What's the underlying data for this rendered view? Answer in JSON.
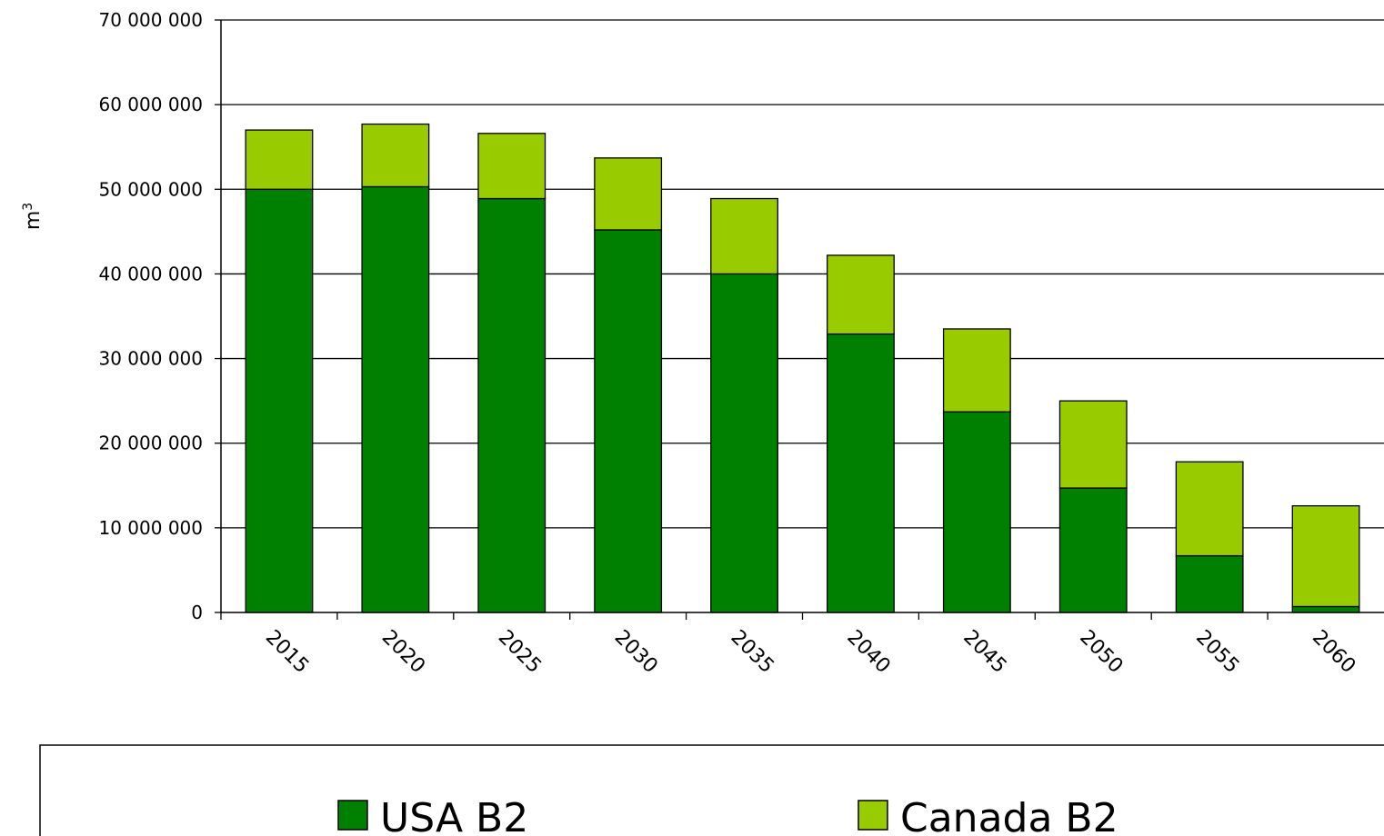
{
  "chart_data": {
    "type": "bar",
    "stacked": true,
    "categories": [
      "2015",
      "2020",
      "2025",
      "2030",
      "2035",
      "2040",
      "2045",
      "2050",
      "2055",
      "2060"
    ],
    "series": [
      {
        "name": "USA B2",
        "color": "#008000",
        "values": [
          50000000,
          50300000,
          48900000,
          45200000,
          40000000,
          32900000,
          23700000,
          14700000,
          6700000,
          700000
        ]
      },
      {
        "name": "Canada B2",
        "color": "#99cc00",
        "values": [
          7000000,
          7400000,
          7700000,
          8500000,
          8900000,
          9300000,
          9800000,
          10300000,
          11100000,
          11900000
        ]
      }
    ],
    "ylabel": "m3",
    "ylim": [
      0,
      70000000
    ],
    "yticks": [
      0,
      10000000,
      20000000,
      30000000,
      40000000,
      50000000,
      60000000,
      70000000
    ],
    "ytick_labels": [
      "0",
      "10 000 000",
      "20 000 000",
      "30 000 000",
      "40 000 000",
      "50 000 000",
      "60 000 000",
      "70 000 000"
    ],
    "grid": true,
    "legend_position": "bottom"
  }
}
